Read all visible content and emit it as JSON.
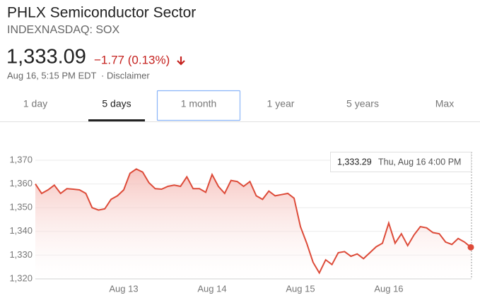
{
  "header": {
    "title": "PHLX Semiconductor Sector",
    "symbol": "INDEXNASDAQ: SOX",
    "price": "1,333.09",
    "change": "−1.77 (0.13%)",
    "timestamp": "Aug 16, 5:15 PM EDT",
    "separator": "·",
    "disclaimer": "Disclaimer"
  },
  "tabs": [
    "1 day",
    "5 days",
    "1 month",
    "1 year",
    "5 years",
    "Max"
  ],
  "chart_data": {
    "type": "line",
    "color": "#dd4b39",
    "categories": [
      null,
      null,
      null,
      null,
      null,
      null,
      null,
      null,
      null,
      null,
      null,
      null,
      null,
      null,
      "Aug 13",
      null,
      null,
      null,
      null,
      null,
      null,
      null,
      null,
      null,
      null,
      null,
      null,
      null,
      "Aug 14",
      null,
      null,
      null,
      null,
      null,
      null,
      null,
      null,
      null,
      null,
      null,
      null,
      null,
      "Aug 15",
      null,
      null,
      null,
      null,
      null,
      null,
      null,
      null,
      null,
      null,
      null,
      null,
      null,
      "Aug 16",
      null,
      null,
      null,
      null,
      null,
      null,
      null,
      null,
      null,
      null,
      null,
      null,
      null
    ],
    "values": [
      1360,
      1356,
      1357.5,
      1359.5,
      1356,
      1358,
      1357.8,
      1357.5,
      1356,
      1350,
      1349,
      1349.5,
      1353.5,
      1355,
      1357.5,
      1364.5,
      1366.3,
      1365,
      1360.5,
      1358,
      1357.8,
      1359,
      1359.5,
      1359,
      1363,
      1358,
      1358,
      1356.5,
      1364,
      1359,
      1356,
      1361.5,
      1361,
      1359,
      1361,
      1355,
      1353.5,
      1357,
      1355,
      1355.5,
      1356,
      1354,
      1342,
      1335,
      1327,
      1322.5,
      1328,
      1326,
      1331,
      1331.5,
      1329.5,
      1330.5,
      1328.5,
      1331,
      1333.5,
      1335,
      1343.5,
      1335,
      1339,
      1334,
      1338.5,
      1342,
      1341.5,
      1339.5,
      1339,
      1335.5,
      1334.5,
      1337,
      1335.5,
      1333.29
    ],
    "ylim": [
      1320,
      1370
    ],
    "yticks": [
      {
        "value": 1320,
        "label": "1,320"
      },
      {
        "value": 1330,
        "label": "1,330"
      },
      {
        "value": 1340,
        "label": "1,340"
      },
      {
        "value": 1350,
        "label": "1,350"
      },
      {
        "value": 1360,
        "label": "1,360"
      },
      {
        "value": 1370,
        "label": "1,370"
      }
    ],
    "grid": true,
    "tooltip": {
      "value_label": "1,333.29",
      "time": "Thu, Aug 16 4:00 PM"
    }
  }
}
